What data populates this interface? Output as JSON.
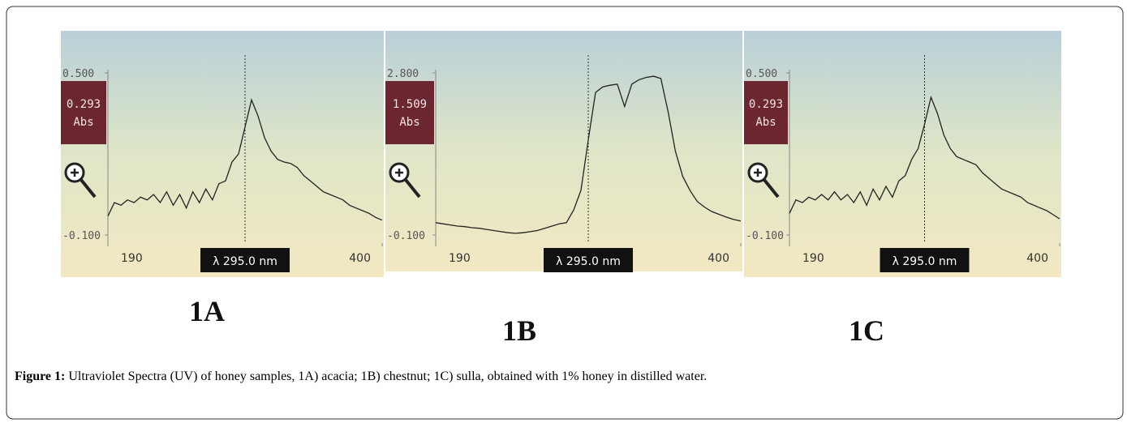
{
  "chart_data": [
    {
      "type": "line",
      "title": "1A",
      "xlim": [
        190,
        400
      ],
      "ylim": [
        -0.1,
        0.5
      ],
      "xticks": [
        190,
        400
      ],
      "yticks": [
        {
          "value": -0.1,
          "label": "-0.100"
        },
        {
          "value": 0.5,
          "label": "0.500"
        }
      ],
      "readout": {
        "value": 0.293,
        "label": "0.293"
      },
      "readout_unit": "Abs",
      "cursor": {
        "value": 295,
        "label": "λ 295.0 nm"
      },
      "x": [
        190,
        195,
        200,
        205,
        210,
        215,
        220,
        225,
        230,
        235,
        240,
        245,
        250,
        255,
        260,
        265,
        270,
        275,
        280,
        285,
        290,
        295,
        300,
        305,
        310,
        315,
        320,
        325,
        330,
        335,
        340,
        345,
        350,
        355,
        360,
        365,
        370,
        375,
        380,
        385,
        390,
        395,
        400
      ],
      "series": [
        {
          "color": "#222222",
          "values": [
            -0.03,
            0.02,
            0.01,
            0.03,
            0.02,
            0.04,
            0.03,
            0.05,
            0.02,
            0.06,
            0.01,
            0.05,
            0.0,
            0.06,
            0.02,
            0.07,
            0.03,
            0.09,
            0.1,
            0.17,
            0.2,
            0.3,
            0.4,
            0.34,
            0.26,
            0.21,
            0.18,
            0.17,
            0.165,
            0.15,
            0.12,
            0.1,
            0.08,
            0.06,
            0.05,
            0.04,
            0.03,
            0.01,
            0.0,
            -0.01,
            -0.02,
            -0.035,
            -0.045
          ]
        }
      ]
    },
    {
      "type": "line",
      "title": "1B",
      "xlim": [
        190,
        400
      ],
      "ylim": [
        -0.1,
        2.8
      ],
      "xticks": [
        190,
        400
      ],
      "yticks": [
        {
          "value": -0.1,
          "label": "-0.100"
        },
        {
          "value": 2.8,
          "label": "2.800"
        }
      ],
      "readout": {
        "value": 1.509,
        "label": "1.509"
      },
      "readout_unit": "Abs",
      "cursor": {
        "value": 295,
        "label": "λ 295.0 nm"
      },
      "x": [
        190,
        195,
        200,
        205,
        210,
        215,
        220,
        225,
        230,
        235,
        240,
        245,
        250,
        255,
        260,
        265,
        270,
        275,
        280,
        285,
        290,
        295,
        300,
        305,
        310,
        315,
        320,
        325,
        330,
        335,
        340,
        345,
        350,
        355,
        360,
        365,
        370,
        375,
        380,
        385,
        390,
        395,
        400
      ],
      "series": [
        {
          "color": "#222222",
          "values": [
            0.12,
            0.1,
            0.08,
            0.06,
            0.05,
            0.03,
            0.02,
            0.0,
            -0.02,
            -0.04,
            -0.06,
            -0.07,
            -0.06,
            -0.04,
            -0.02,
            0.02,
            0.06,
            0.1,
            0.12,
            0.35,
            0.7,
            1.6,
            2.45,
            2.55,
            2.58,
            2.6,
            2.2,
            2.6,
            2.68,
            2.72,
            2.74,
            2.7,
            2.1,
            1.4,
            0.95,
            0.7,
            0.5,
            0.4,
            0.32,
            0.27,
            0.22,
            0.18,
            0.15
          ]
        }
      ]
    },
    {
      "type": "line",
      "title": "1C",
      "xlim": [
        190,
        400
      ],
      "ylim": [
        -0.1,
        0.5
      ],
      "xticks": [
        190,
        400
      ],
      "yticks": [
        {
          "value": -0.1,
          "label": "-0.100"
        },
        {
          "value": 0.5,
          "label": "0.500"
        }
      ],
      "readout": {
        "value": 0.293,
        "label": "0.293"
      },
      "readout_unit": "Abs",
      "cursor": {
        "value": 295,
        "label": "λ 295.0 nm"
      },
      "x": [
        190,
        195,
        200,
        205,
        210,
        215,
        220,
        225,
        230,
        235,
        240,
        245,
        250,
        255,
        260,
        265,
        270,
        275,
        280,
        285,
        290,
        295,
        300,
        305,
        310,
        315,
        320,
        325,
        330,
        335,
        340,
        345,
        350,
        355,
        360,
        365,
        370,
        375,
        380,
        385,
        390,
        395,
        400
      ],
      "series": [
        {
          "color": "#222222",
          "values": [
            -0.02,
            0.03,
            0.02,
            0.04,
            0.03,
            0.05,
            0.03,
            0.06,
            0.03,
            0.05,
            0.02,
            0.06,
            0.01,
            0.07,
            0.03,
            0.08,
            0.04,
            0.1,
            0.12,
            0.18,
            0.22,
            0.31,
            0.41,
            0.35,
            0.27,
            0.22,
            0.19,
            0.18,
            0.17,
            0.16,
            0.13,
            0.11,
            0.09,
            0.07,
            0.06,
            0.05,
            0.04,
            0.02,
            0.01,
            0.0,
            -0.01,
            -0.025,
            -0.04
          ]
        }
      ]
    }
  ],
  "caption": {
    "label": "Figure 1:",
    "text": "Ultraviolet Spectra (UV) of honey samples, 1A) acacia; 1B) chestnut; 1C) sulla, obtained with 1% honey in distilled water."
  }
}
